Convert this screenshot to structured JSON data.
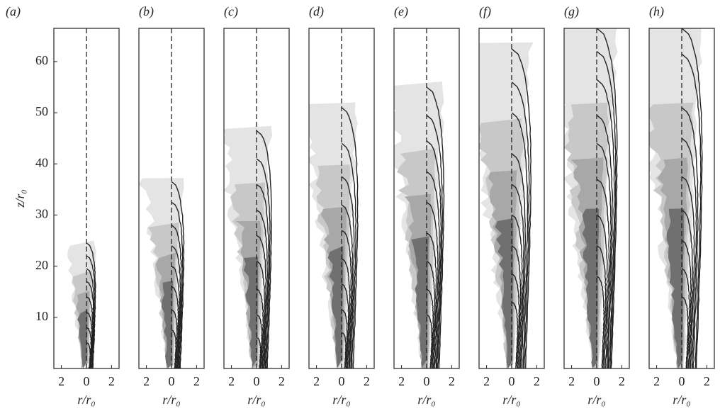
{
  "chart_data": [
    {
      "type": "contour",
      "label": "(a)",
      "xlabel": "r/r₀",
      "ylabel": "z/r₀",
      "xlim": [
        -2.6,
        2.6
      ],
      "xticks": [
        {
          "value": -2,
          "label": "2"
        },
        0,
        2
      ],
      "ylim": [
        0,
        66.5
      ],
      "yticks": [
        10,
        20,
        30,
        40,
        50,
        60
      ],
      "values": [
        24.5,
        22,
        19.5,
        17,
        14,
        11,
        8,
        5
      ]
    },
    {
      "type": "contour",
      "label": "(b)",
      "xlabel": "r/r₀",
      "xlim": [
        -2.6,
        2.6
      ],
      "xticks": [
        {
          "value": -2,
          "label": "2"
        },
        0,
        2
      ],
      "ylim": [
        0,
        66.5
      ],
      "values": [
        36.5,
        32.5,
        28,
        24,
        20,
        16,
        11.5,
        7.5
      ]
    },
    {
      "type": "contour",
      "label": "(c)",
      "xlabel": "r/r₀",
      "xlim": [
        -2.6,
        2.6
      ],
      "xticks": [
        {
          "value": -2,
          "label": "2"
        },
        0,
        2
      ],
      "ylim": [
        0,
        66.5
      ],
      "values": [
        46.5,
        41,
        36,
        31,
        26,
        21,
        15.5,
        10.5,
        6
      ]
    },
    {
      "type": "contour",
      "label": "(d)",
      "xlabel": "r/r₀",
      "xlim": [
        -2.6,
        2.6
      ],
      "xticks": [
        {
          "value": -2,
          "label": "2"
        },
        0,
        2
      ],
      "ylim": [
        0,
        66.5
      ],
      "values": [
        51,
        44,
        37.5,
        32,
        27,
        21.5,
        16.5,
        11.5,
        7
      ]
    },
    {
      "type": "contour",
      "label": "(e)",
      "xlabel": "r/r₀",
      "xlim": [
        -2.6,
        2.6
      ],
      "xticks": [
        {
          "value": -2,
          "label": "2"
        },
        0,
        2
      ],
      "ylim": [
        0,
        66.5
      ],
      "values": [
        55,
        49.5,
        44.5,
        38.5,
        32.5,
        26.5,
        21,
        15.5,
        10.5
      ]
    },
    {
      "type": "contour",
      "label": "(f)",
      "xlabel": "r/r₀",
      "xlim": [
        -2.6,
        2.6
      ],
      "xticks": [
        {
          "value": -2,
          "label": "2"
        },
        0,
        2
      ],
      "ylim": [
        0,
        66.5
      ],
      "values": [
        62.5,
        56,
        50,
        42,
        36,
        30,
        24,
        18.5,
        13
      ]
    },
    {
      "type": "contour",
      "label": "(g)",
      "xlabel": "r/r₀",
      "xlim": [
        -2.6,
        2.6
      ],
      "xticks": [
        {
          "value": -2,
          "label": "2"
        },
        0,
        2
      ],
      "ylim": [
        0,
        66.5
      ],
      "values": [
        66.5,
        62,
        56.5,
        49.5,
        44,
        37,
        30,
        24,
        18
      ]
    },
    {
      "type": "contour",
      "label": "(h)",
      "xlabel": "r/r₀",
      "xlim": [
        -2.6,
        2.6
      ],
      "xticks": [
        {
          "value": -2,
          "label": "2"
        },
        0,
        2
      ],
      "ylim": [
        0,
        66.5
      ],
      "values": [
        66.5,
        61.5,
        51,
        45,
        37.5,
        31,
        25,
        19.5,
        14
      ]
    }
  ]
}
